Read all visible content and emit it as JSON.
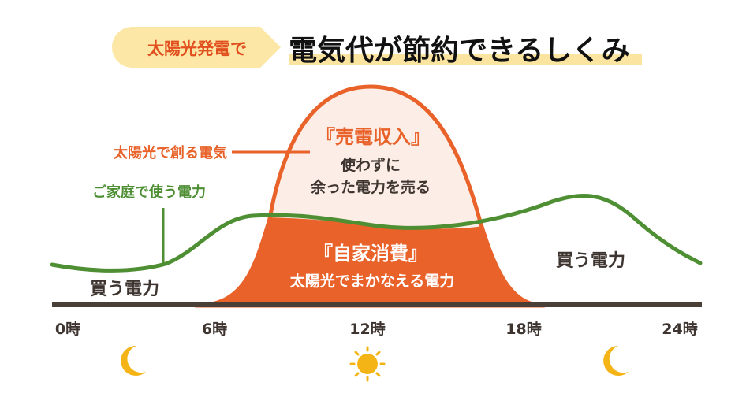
{
  "header": {
    "badge": "太陽光発電で",
    "title": "電気代が節約できるしくみ"
  },
  "labels": {
    "solar_generation": "太陽光で創る電気",
    "household_use": "ご家庭で使う電力",
    "sell_title": "『売電収入』",
    "sell_line1": "使わずに",
    "sell_line2": "余った電力を売る",
    "self_title": "『自家消費』",
    "self_line": "太陽光でまかなえる電力",
    "buy_left": "買う電力",
    "buy_right": "買う電力"
  },
  "time_axis": {
    "ticks": [
      "0時",
      "6時",
      "12時",
      "18時",
      "24時"
    ]
  },
  "icons": {
    "left": "moon-icon",
    "center": "sun-icon",
    "right": "moon-icon"
  },
  "colors": {
    "solar_orange": "#E8622A",
    "surplus_fill": "#FCEDE6",
    "household_green": "#4E8F34",
    "badge_bg": "#FCE7A6",
    "title_underline": "#FBE3A0",
    "axis": "#4A3F37",
    "text_dark": "#3E3530",
    "moon_sun": "#F4B416"
  }
}
